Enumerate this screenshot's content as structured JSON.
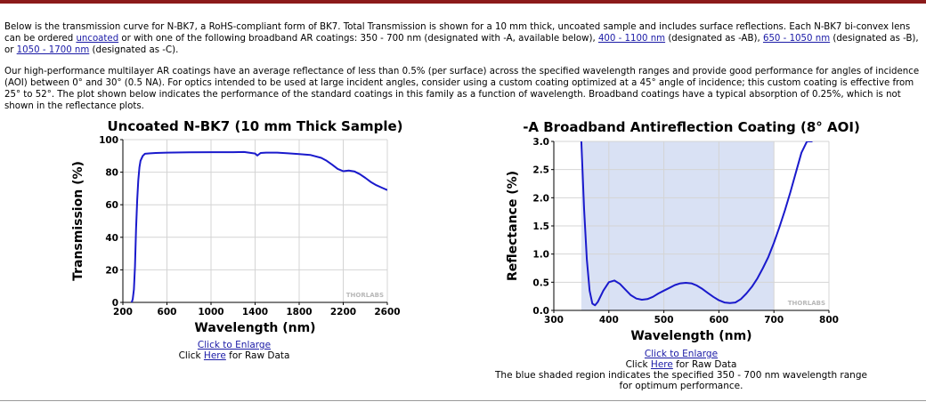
{
  "intro": {
    "p1_a": "Below is the transmission curve for N-BK7, a RoHS-compliant form of BK7. Total Transmission is shown for a 10 mm thick, uncoated sample and includes surface reflections. Each N-BK7 bi-convex lens can be ordered ",
    "link_uncoated": "uncoated",
    "p1_b": " or with one of the following broadband AR coatings: 350 - 700 nm (designated with -A, available below), ",
    "link_ab": "400 - 1100 nm",
    "p1_c": " (designated as -AB), ",
    "link_b": "650 - 1050 nm",
    "p1_d": " (designated as -B), or ",
    "link_c": "1050 - 1700 nm",
    "p1_e": " (designated as -C).",
    "p2": "Our high-performance multilayer AR coatings have an average reflectance of less than 0.5% (per surface) across the specified wavelength ranges and provide good performance for angles of incidence (AOI) between 0° and 30° (0.5 NA). For optics intended to be used at large incident angles, consider using a custom coating optimized at a 45° angle of incidence; this custom coating is effective from 25° to 52°. The plot shown below indicates the performance of the standard coatings in this family as a function of wavelength. Broadband coatings have a typical absorption of 0.25%, which is not shown in the reflectance plots."
  },
  "left_panel": {
    "enlarge_link": "Click to Enlarge",
    "raw_prefix": "Click ",
    "raw_link": "Here",
    "raw_suffix": " for Raw Data"
  },
  "right_panel": {
    "enlarge_link": "Click to Enlarge",
    "raw_prefix": "Click ",
    "raw_link": "Here",
    "raw_suffix": " for Raw Data",
    "caption_line1": "The blue shaded region indicates the specified 350 - 700 nm wavelength range",
    "caption_line2": "for optimum performance."
  },
  "colors": {
    "curve": "#1a1acc",
    "shade": "#d9e1f4",
    "grid": "#d4d4d4",
    "header_rule": "#8b1a1a"
  },
  "chart_data": [
    {
      "type": "line",
      "title": "Uncoated N-BK7 (10 mm Thick Sample)",
      "xlabel": "Wavelength (nm)",
      "ylabel": "Transmission (%)",
      "xlim": [
        200,
        2600
      ],
      "ylim": [
        0,
        100
      ],
      "xticks": [
        200,
        600,
        1000,
        1400,
        1800,
        2200,
        2600
      ],
      "xtick_labels": [
        "200",
        "600",
        "1000",
        "1400",
        "1800",
        "2200",
        "2600"
      ],
      "yticks": [
        0,
        20,
        40,
        60,
        80,
        100
      ],
      "ytick_labels": [
        "0",
        "20",
        "40",
        "60",
        "80",
        "100"
      ],
      "grid": true,
      "watermark": "THORLABS",
      "series": [
        {
          "x": [
            280,
            290,
            300,
            310,
            320,
            330,
            340,
            350,
            360,
            380,
            400,
            450,
            500,
            600,
            800,
            1000,
            1200,
            1300,
            1400,
            1420,
            1450,
            1500,
            1600,
            1700,
            1800,
            1900,
            2000,
            2050,
            2100,
            2150,
            2200,
            2250,
            2300,
            2350,
            2400,
            2450,
            2500,
            2550,
            2600
          ],
          "y": [
            0,
            2,
            8,
            22,
            45,
            63,
            75,
            83,
            87,
            90,
            91.3,
            91.6,
            91.8,
            92,
            92.2,
            92.3,
            92.3,
            92.4,
            91.5,
            90.2,
            91.8,
            92,
            92,
            91.6,
            91.1,
            90.6,
            88.8,
            87,
            84.6,
            82,
            80.6,
            81,
            80.5,
            78.8,
            76.5,
            74,
            72,
            70.5,
            69
          ]
        }
      ]
    },
    {
      "type": "line",
      "title": "-A Broadband Antireflection Coating (8° AOI)",
      "xlabel": "Wavelength (nm)",
      "ylabel": "Reflectance (%)",
      "xlim": [
        300,
        800
      ],
      "ylim": [
        0,
        3
      ],
      "xticks": [
        300,
        400,
        500,
        600,
        700,
        800
      ],
      "xtick_labels": [
        "300",
        "400",
        "500",
        "600",
        "700",
        "800"
      ],
      "yticks": [
        0,
        0.5,
        1,
        1.5,
        2,
        2.5,
        3
      ],
      "ytick_labels": [
        "0.0",
        "0.5",
        "1.0",
        "1.5",
        "2.0",
        "2.5",
        "3.0"
      ],
      "grid": true,
      "shaded_region": [
        350,
        700
      ],
      "watermark": "THORLABS",
      "series": [
        {
          "x": [
            350,
            355,
            360,
            365,
            370,
            375,
            380,
            390,
            400,
            410,
            420,
            430,
            440,
            450,
            460,
            470,
            480,
            490,
            500,
            510,
            520,
            530,
            540,
            550,
            560,
            570,
            580,
            590,
            600,
            610,
            620,
            630,
            640,
            650,
            660,
            670,
            680,
            690,
            700,
            710,
            720,
            730,
            740,
            750,
            760,
            770
          ],
          "y": [
            3.0,
            1.8,
            0.9,
            0.35,
            0.12,
            0.09,
            0.15,
            0.35,
            0.5,
            0.53,
            0.47,
            0.37,
            0.27,
            0.21,
            0.19,
            0.2,
            0.24,
            0.3,
            0.35,
            0.4,
            0.45,
            0.48,
            0.49,
            0.48,
            0.44,
            0.38,
            0.31,
            0.24,
            0.18,
            0.14,
            0.13,
            0.14,
            0.2,
            0.3,
            0.42,
            0.57,
            0.75,
            0.95,
            1.2,
            1.48,
            1.78,
            2.1,
            2.45,
            2.8,
            3.0,
            3.0
          ]
        }
      ]
    }
  ]
}
